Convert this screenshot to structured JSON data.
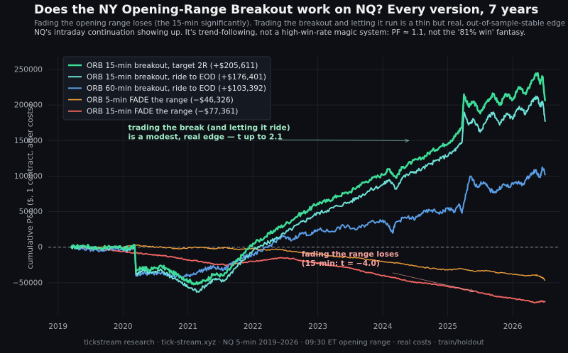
{
  "header": {
    "title": "Does the NY Opening-Range Breakout work on NQ? Every version, 7 years",
    "subtitle_line1": "Fading the opening range loses (the 15-min significantly). Trading the breakout and letting it run is a thin but real, out-of-sample-stable edge —",
    "subtitle_line2": "NQ's intraday continuation showing up. It's trend-following, not a high-win-rate magic system: PF ≈ 1.1, not the '81% win' fantasy."
  },
  "footer": {
    "text": "tickstream research · tick-stream.xyz · NQ 5-min 2019–2026 · 09:30 ET opening range · real costs · train/holdout"
  },
  "colors": {
    "background": "#0d0f14",
    "grid": "#1f232b",
    "zero_line": "#8a8f98"
  },
  "chart_data": {
    "type": "line",
    "xlabel": "",
    "ylabel": "cumulative P&L ($, 1 contract, after costs)",
    "xlim": [
      2018.85,
      2026.72
    ],
    "ylim": [
      -97000,
      268000
    ],
    "x_ticks": [
      2019,
      2020,
      2021,
      2022,
      2023,
      2024,
      2025,
      2026
    ],
    "y_ticks": [
      -50000,
      0,
      50000,
      100000,
      150000,
      200000,
      250000
    ],
    "y_tick_labels": [
      "−50000",
      "0",
      "50000",
      "100000",
      "150000",
      "200000",
      "250000"
    ],
    "x_tick_labels": [
      "2019",
      "2020",
      "2021",
      "2022",
      "2023",
      "2024",
      "2025",
      "2026"
    ],
    "grid": true,
    "zero_line": true,
    "legend_position": "top-left",
    "series": [
      {
        "name": "ORB 15-min breakout, target 2R   (+$205,611)",
        "color": "#3ddc97",
        "width": 2.6,
        "points": [
          [
            2019.2,
            0
          ],
          [
            2019.4,
            2000
          ],
          [
            2019.6,
            -1000
          ],
          [
            2019.9,
            1000
          ],
          [
            2020.1,
            -2000
          ],
          [
            2020.18,
            3000
          ],
          [
            2020.2,
            -35000
          ],
          [
            2020.3,
            -28000
          ],
          [
            2020.4,
            -32000
          ],
          [
            2020.6,
            -27000
          ],
          [
            2020.75,
            -35000
          ],
          [
            2020.9,
            -42000
          ],
          [
            2021.0,
            -47000
          ],
          [
            2021.15,
            -52000
          ],
          [
            2021.3,
            -45000
          ],
          [
            2021.4,
            -38000
          ],
          [
            2021.55,
            -40000
          ],
          [
            2021.7,
            -25000
          ],
          [
            2021.85,
            -10000
          ],
          [
            2022.0,
            5000
          ],
          [
            2022.2,
            15000
          ],
          [
            2022.35,
            25000
          ],
          [
            2022.5,
            32000
          ],
          [
            2022.7,
            45000
          ],
          [
            2022.85,
            52000
          ],
          [
            2023.0,
            62000
          ],
          [
            2023.15,
            65000
          ],
          [
            2023.3,
            72000
          ],
          [
            2023.5,
            78000
          ],
          [
            2023.65,
            88000
          ],
          [
            2023.8,
            95000
          ],
          [
            2024.0,
            102000
          ],
          [
            2024.1,
            110000
          ],
          [
            2024.2,
            98000
          ],
          [
            2024.3,
            112000
          ],
          [
            2024.45,
            120000
          ],
          [
            2024.6,
            125000
          ],
          [
            2024.75,
            135000
          ],
          [
            2024.9,
            142000
          ],
          [
            2025.05,
            150000
          ],
          [
            2025.15,
            160000
          ],
          [
            2025.22,
            170000
          ],
          [
            2025.25,
            215000
          ],
          [
            2025.32,
            198000
          ],
          [
            2025.4,
            205000
          ],
          [
            2025.5,
            188000
          ],
          [
            2025.6,
            205000
          ],
          [
            2025.7,
            215000
          ],
          [
            2025.8,
            200000
          ],
          [
            2025.9,
            215000
          ],
          [
            2026.0,
            208000
          ],
          [
            2026.1,
            225000
          ],
          [
            2026.2,
            215000
          ],
          [
            2026.3,
            235000
          ],
          [
            2026.38,
            245000
          ],
          [
            2026.42,
            230000
          ],
          [
            2026.46,
            240000
          ],
          [
            2026.5,
            205611
          ]
        ]
      },
      {
        "name": "ORB 15-min breakout, ride to EOD   (+$176,401)",
        "color": "#6fe0d6",
        "width": 2.0,
        "points": [
          [
            2019.2,
            0
          ],
          [
            2019.4,
            1000
          ],
          [
            2019.6,
            -2000
          ],
          [
            2019.9,
            0
          ],
          [
            2020.1,
            -3000
          ],
          [
            2020.18,
            2000
          ],
          [
            2020.2,
            -38000
          ],
          [
            2020.3,
            -32000
          ],
          [
            2020.4,
            -36000
          ],
          [
            2020.6,
            -33000
          ],
          [
            2020.75,
            -42000
          ],
          [
            2020.9,
            -50000
          ],
          [
            2021.0,
            -56000
          ],
          [
            2021.15,
            -62000
          ],
          [
            2021.3,
            -52000
          ],
          [
            2021.4,
            -45000
          ],
          [
            2021.55,
            -48000
          ],
          [
            2021.7,
            -32000
          ],
          [
            2021.85,
            -18000
          ],
          [
            2022.0,
            -5000
          ],
          [
            2022.2,
            5000
          ],
          [
            2022.35,
            12000
          ],
          [
            2022.5,
            20000
          ],
          [
            2022.7,
            32000
          ],
          [
            2022.85,
            40000
          ],
          [
            2023.0,
            48000
          ],
          [
            2023.15,
            52000
          ],
          [
            2023.3,
            58000
          ],
          [
            2023.5,
            64000
          ],
          [
            2023.65,
            72000
          ],
          [
            2023.8,
            80000
          ],
          [
            2024.0,
            88000
          ],
          [
            2024.1,
            95000
          ],
          [
            2024.2,
            82000
          ],
          [
            2024.3,
            98000
          ],
          [
            2024.45,
            105000
          ],
          [
            2024.6,
            110000
          ],
          [
            2024.75,
            118000
          ],
          [
            2024.9,
            125000
          ],
          [
            2025.05,
            132000
          ],
          [
            2025.15,
            140000
          ],
          [
            2025.22,
            148000
          ],
          [
            2025.25,
            190000
          ],
          [
            2025.32,
            172000
          ],
          [
            2025.4,
            180000
          ],
          [
            2025.5,
            162000
          ],
          [
            2025.6,
            180000
          ],
          [
            2025.7,
            190000
          ],
          [
            2025.8,
            172000
          ],
          [
            2025.9,
            188000
          ],
          [
            2026.0,
            180000
          ],
          [
            2026.1,
            198000
          ],
          [
            2026.2,
            188000
          ],
          [
            2026.3,
            205000
          ],
          [
            2026.38,
            212000
          ],
          [
            2026.42,
            198000
          ],
          [
            2026.46,
            205000
          ],
          [
            2026.5,
            176401
          ]
        ]
      },
      {
        "name": "ORB 60-min breakout, ride to EOD   (+$103,392)",
        "color": "#5b9ee6",
        "width": 2.0,
        "points": [
          [
            2019.2,
            0
          ],
          [
            2019.4,
            -2000
          ],
          [
            2019.6,
            -4000
          ],
          [
            2019.9,
            -2000
          ],
          [
            2020.1,
            -4000
          ],
          [
            2020.18,
            0
          ],
          [
            2020.2,
            -40000
          ],
          [
            2020.3,
            -36000
          ],
          [
            2020.4,
            -38000
          ],
          [
            2020.6,
            -35000
          ],
          [
            2020.75,
            -40000
          ],
          [
            2020.9,
            -42000
          ],
          [
            2021.0,
            -40000
          ],
          [
            2021.15,
            -35000
          ],
          [
            2021.3,
            -30000
          ],
          [
            2021.4,
            -28000
          ],
          [
            2021.55,
            -32000
          ],
          [
            2021.7,
            -20000
          ],
          [
            2021.85,
            -15000
          ],
          [
            2022.0,
            -10000
          ],
          [
            2022.15,
            -5000
          ],
          [
            2022.3,
            5000
          ],
          [
            2022.45,
            15000
          ],
          [
            2022.6,
            10000
          ],
          [
            2022.75,
            20000
          ],
          [
            2022.9,
            18000
          ],
          [
            2023.0,
            25000
          ],
          [
            2023.2,
            22000
          ],
          [
            2023.4,
            30000
          ],
          [
            2023.6,
            25000
          ],
          [
            2023.8,
            35000
          ],
          [
            2024.0,
            38000
          ],
          [
            2024.1,
            30000
          ],
          [
            2024.15,
            20000
          ],
          [
            2024.2,
            35000
          ],
          [
            2024.35,
            42000
          ],
          [
            2024.5,
            40000
          ],
          [
            2024.6,
            48000
          ],
          [
            2024.75,
            52000
          ],
          [
            2024.9,
            48000
          ],
          [
            2025.0,
            55000
          ],
          [
            2025.1,
            50000
          ],
          [
            2025.18,
            60000
          ],
          [
            2025.22,
            48000
          ],
          [
            2025.28,
            75000
          ],
          [
            2025.35,
            100000
          ],
          [
            2025.45,
            85000
          ],
          [
            2025.55,
            92000
          ],
          [
            2025.65,
            80000
          ],
          [
            2025.75,
            78000
          ],
          [
            2025.85,
            88000
          ],
          [
            2025.95,
            85000
          ],
          [
            2026.05,
            92000
          ],
          [
            2026.15,
            88000
          ],
          [
            2026.25,
            100000
          ],
          [
            2026.35,
            108000
          ],
          [
            2026.42,
            98000
          ],
          [
            2026.46,
            112000
          ],
          [
            2026.5,
            103392
          ]
        ]
      },
      {
        "name": "ORB 5-min FADE the range   (−$46,326)",
        "color": "#f2a03d",
        "width": 1.4,
        "points": [
          [
            2019.2,
            0
          ],
          [
            2019.5,
            -1000
          ],
          [
            2019.8,
            1000
          ],
          [
            2020.0,
            0
          ],
          [
            2020.2,
            3000
          ],
          [
            2020.4,
            1000
          ],
          [
            2020.6,
            0
          ],
          [
            2020.8,
            -2000
          ],
          [
            2021.0,
            -1000
          ],
          [
            2021.2,
            0
          ],
          [
            2021.4,
            -2000
          ],
          [
            2021.6,
            -1000
          ],
          [
            2021.8,
            -3000
          ],
          [
            2022.0,
            -2000
          ],
          [
            2022.2,
            -4000
          ],
          [
            2022.4,
            -3000
          ],
          [
            2022.6,
            -6000
          ],
          [
            2022.8,
            -8000
          ],
          [
            2023.0,
            -10000
          ],
          [
            2023.2,
            -12000
          ],
          [
            2023.4,
            -14000
          ],
          [
            2023.6,
            -15000
          ],
          [
            2023.8,
            -18000
          ],
          [
            2024.0,
            -20000
          ],
          [
            2024.2,
            -22000
          ],
          [
            2024.4,
            -25000
          ],
          [
            2024.6,
            -28000
          ],
          [
            2024.8,
            -30000
          ],
          [
            2025.0,
            -32000
          ],
          [
            2025.2,
            -30000
          ],
          [
            2025.4,
            -34000
          ],
          [
            2025.6,
            -33000
          ],
          [
            2025.8,
            -36000
          ],
          [
            2026.0,
            -38000
          ],
          [
            2026.2,
            -40000
          ],
          [
            2026.35,
            -39000
          ],
          [
            2026.45,
            -42000
          ],
          [
            2026.5,
            -46326
          ]
        ]
      },
      {
        "name": "ORB 15-min FADE the range   (−$77,361)",
        "color": "#ef6461",
        "width": 1.9,
        "points": [
          [
            2019.2,
            0
          ],
          [
            2019.5,
            -2000
          ],
          [
            2019.8,
            -4000
          ],
          [
            2020.0,
            -6000
          ],
          [
            2020.2,
            -8000
          ],
          [
            2020.4,
            -10000
          ],
          [
            2020.6,
            -12000
          ],
          [
            2020.8,
            -14000
          ],
          [
            2021.0,
            -18000
          ],
          [
            2021.2,
            -20000
          ],
          [
            2021.4,
            -24000
          ],
          [
            2021.6,
            -25000
          ],
          [
            2021.8,
            -22000
          ],
          [
            2022.0,
            -20000
          ],
          [
            2022.2,
            -18000
          ],
          [
            2022.4,
            -15000
          ],
          [
            2022.6,
            -16000
          ],
          [
            2022.8,
            -20000
          ],
          [
            2023.0,
            -22000
          ],
          [
            2023.2,
            -26000
          ],
          [
            2023.4,
            -28000
          ],
          [
            2023.6,
            -32000
          ],
          [
            2023.8,
            -36000
          ],
          [
            2024.0,
            -40000
          ],
          [
            2024.2,
            -43000
          ],
          [
            2024.4,
            -48000
          ],
          [
            2024.6,
            -50000
          ],
          [
            2024.8,
            -52000
          ],
          [
            2025.0,
            -55000
          ],
          [
            2025.2,
            -58000
          ],
          [
            2025.4,
            -62000
          ],
          [
            2025.6,
            -66000
          ],
          [
            2025.8,
            -70000
          ],
          [
            2026.0,
            -72000
          ],
          [
            2026.2,
            -75000
          ],
          [
            2026.35,
            -78000
          ],
          [
            2026.45,
            -76000
          ],
          [
            2026.5,
            -77361
          ]
        ]
      }
    ],
    "annotations": [
      {
        "text_line1": "trading the break (and letting it ride)",
        "text_line2": "is a modest, real edge — t up to 2.1",
        "color": "#9fe8c4",
        "text_at": [
          2020.08,
          165000
        ],
        "arrow_from": [
          2022.4,
          151000
        ],
        "arrow_to": [
          2024.4,
          150000
        ]
      },
      {
        "text_line1": "fading the range loses",
        "text_line2": "(15-min: t = −4.0)",
        "color": "#f6a3a1",
        "text_at": [
          2022.75,
          -13000
        ],
        "arrow_from": [
          2024.15,
          -36000
        ],
        "arrow_to": [
          2025.4,
          -62000
        ]
      }
    ]
  }
}
